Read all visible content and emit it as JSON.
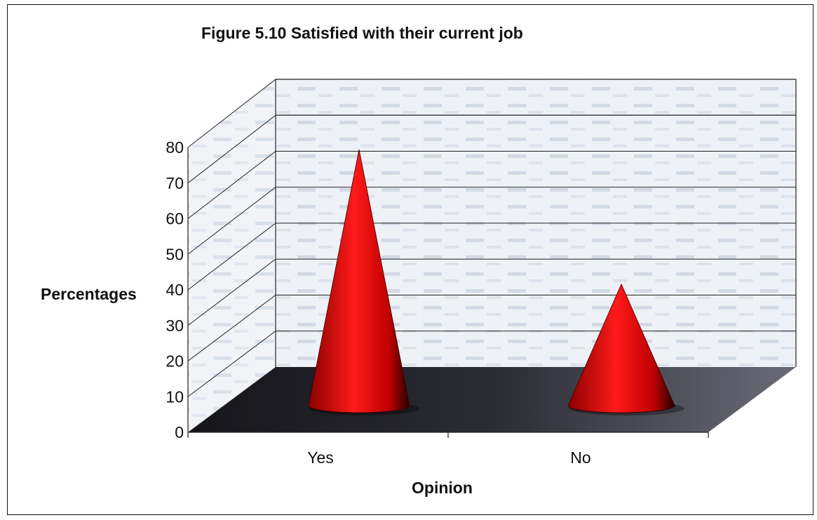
{
  "chart_data": {
    "type": "bar",
    "style": "3d-cone",
    "title": "Figure 5.10 Satisfied with their current job",
    "xlabel": "Opinion",
    "ylabel": "Percentages",
    "categories": [
      "Yes",
      "No"
    ],
    "values": [
      78,
      37
    ],
    "ylim": [
      0,
      80
    ],
    "yticks": [
      0,
      10,
      20,
      30,
      40,
      50,
      60,
      70,
      80
    ],
    "grid": true,
    "legend": "none",
    "colors": {
      "cone": "#ff1a1a",
      "floor": "#1e1e24",
      "wall": "#dfe5ef"
    }
  }
}
